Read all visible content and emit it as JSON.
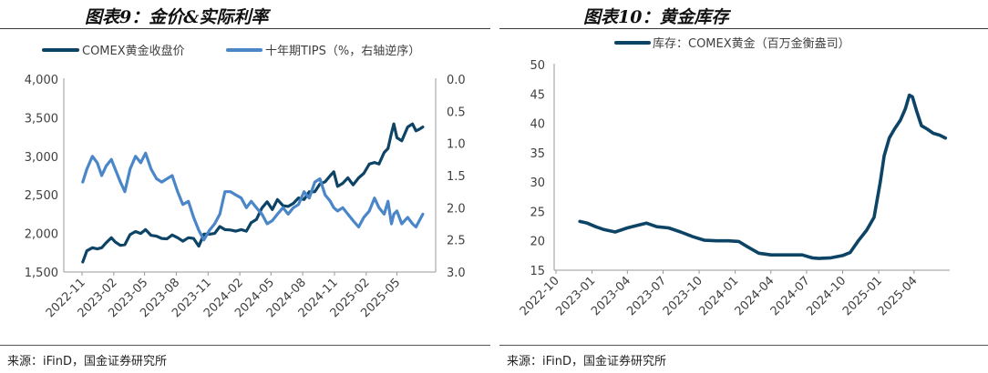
{
  "page": {
    "left_title": "图表9：金价&实际利率",
    "right_title": "图表10：黄金库存",
    "left_source": "来源：iFinD，国金证券研究所",
    "right_source": "来源：iFinD，国金证券研究所"
  },
  "chart_data": [
    {
      "type": "line",
      "x_ticks": [
        "2022-11",
        "2023-02",
        "2023-05",
        "2023-08",
        "2023-11",
        "2024-02",
        "2024-05",
        "2024-08",
        "2024-11",
        "2025-02",
        "2025-05"
      ],
      "y_left": {
        "ticks": [
          "1,500",
          "2,000",
          "2,500",
          "3,000",
          "3,500",
          "4,000"
        ],
        "lim": [
          1500,
          4000
        ]
      },
      "y_right": {
        "ticks": [
          "0.0",
          "0.5",
          "1.0",
          "1.5",
          "2.0",
          "2.5",
          "3.0"
        ],
        "lim": [
          0,
          3
        ],
        "inverted": true
      },
      "legend_position": "top",
      "series": [
        {
          "name": "COMEX黄金收盘价",
          "axis": "left",
          "color": "#0d4466",
          "points": [
            [
              "2022-11-03",
              1630
            ],
            [
              "2022-11-15",
              1775
            ],
            [
              "2022-12-01",
              1815
            ],
            [
              "2022-12-15",
              1800
            ],
            [
              "2022-12-28",
              1815
            ],
            [
              "2023-01-10",
              1880
            ],
            [
              "2023-01-25",
              1945
            ],
            [
              "2023-02-05",
              1890
            ],
            [
              "2023-02-20",
              1845
            ],
            [
              "2023-03-05",
              1855
            ],
            [
              "2023-03-20",
              1985
            ],
            [
              "2023-04-05",
              2025
            ],
            [
              "2023-04-20",
              2000
            ],
            [
              "2023-05-04",
              2050
            ],
            [
              "2023-05-20",
              1975
            ],
            [
              "2023-06-05",
              1965
            ],
            [
              "2023-06-20",
              1935
            ],
            [
              "2023-07-05",
              1930
            ],
            [
              "2023-07-20",
              1980
            ],
            [
              "2023-08-05",
              1945
            ],
            [
              "2023-08-20",
              1900
            ],
            [
              "2023-09-05",
              1945
            ],
            [
              "2023-09-20",
              1935
            ],
            [
              "2023-10-05",
              1835
            ],
            [
              "2023-10-20",
              1990
            ],
            [
              "2023-11-05",
              1990
            ],
            [
              "2023-11-20",
              2000
            ],
            [
              "2023-12-05",
              2090
            ],
            [
              "2023-12-20",
              2050
            ],
            [
              "2024-01-05",
              2045
            ],
            [
              "2024-01-20",
              2030
            ],
            [
              "2024-02-05",
              2050
            ],
            [
              "2024-02-20",
              2030
            ],
            [
              "2024-03-05",
              2140
            ],
            [
              "2024-03-20",
              2180
            ],
            [
              "2024-04-05",
              2330
            ],
            [
              "2024-04-20",
              2410
            ],
            [
              "2024-05-05",
              2310
            ],
            [
              "2024-05-20",
              2440
            ],
            [
              "2024-06-05",
              2360
            ],
            [
              "2024-06-20",
              2350
            ],
            [
              "2024-07-05",
              2390
            ],
            [
              "2024-07-20",
              2460
            ],
            [
              "2024-08-05",
              2440
            ],
            [
              "2024-08-20",
              2540
            ],
            [
              "2024-09-05",
              2540
            ],
            [
              "2024-09-20",
              2640
            ],
            [
              "2024-10-05",
              2670
            ],
            [
              "2024-10-20",
              2750
            ],
            [
              "2024-10-30",
              2800
            ],
            [
              "2024-11-10",
              2610
            ],
            [
              "2024-11-25",
              2650
            ],
            [
              "2024-12-10",
              2720
            ],
            [
              "2024-12-25",
              2630
            ],
            [
              "2025-01-10",
              2720
            ],
            [
              "2025-01-25",
              2780
            ],
            [
              "2025-02-10",
              2900
            ],
            [
              "2025-02-25",
              2920
            ],
            [
              "2025-03-10",
              2900
            ],
            [
              "2025-03-25",
              3050
            ],
            [
              "2025-04-05",
              3100
            ],
            [
              "2025-04-15",
              3300
            ],
            [
              "2025-04-22",
              3420
            ],
            [
              "2025-05-01",
              3240
            ],
            [
              "2025-05-15",
              3200
            ],
            [
              "2025-06-01",
              3380
            ],
            [
              "2025-06-15",
              3420
            ],
            [
              "2025-06-25",
              3330
            ],
            [
              "2025-07-05",
              3350
            ],
            [
              "2025-07-15",
              3380
            ]
          ]
        },
        {
          "name": "十年期TIPS（%，右轴逆序）",
          "axis": "right",
          "color": "#4a86c8",
          "points": [
            [
              "2022-11-03",
              1.6
            ],
            [
              "2022-11-15",
              1.4
            ],
            [
              "2022-12-01",
              1.2
            ],
            [
              "2022-12-15",
              1.3
            ],
            [
              "2022-12-28",
              1.5
            ],
            [
              "2023-01-10",
              1.35
            ],
            [
              "2023-01-25",
              1.25
            ],
            [
              "2023-02-05",
              1.4
            ],
            [
              "2023-02-20",
              1.6
            ],
            [
              "2023-03-05",
              1.75
            ],
            [
              "2023-03-20",
              1.4
            ],
            [
              "2023-04-05",
              1.2
            ],
            [
              "2023-04-20",
              1.3
            ],
            [
              "2023-05-04",
              1.15
            ],
            [
              "2023-05-20",
              1.4
            ],
            [
              "2023-06-05",
              1.55
            ],
            [
              "2023-06-20",
              1.6
            ],
            [
              "2023-07-05",
              1.55
            ],
            [
              "2023-07-20",
              1.5
            ],
            [
              "2023-08-05",
              1.75
            ],
            [
              "2023-08-20",
              1.95
            ],
            [
              "2023-09-05",
              1.9
            ],
            [
              "2023-09-20",
              2.15
            ],
            [
              "2023-10-05",
              2.35
            ],
            [
              "2023-10-20",
              2.5
            ],
            [
              "2023-11-05",
              2.35
            ],
            [
              "2023-11-20",
              2.25
            ],
            [
              "2023-12-05",
              2.1
            ],
            [
              "2023-12-20",
              1.75
            ],
            [
              "2024-01-05",
              1.75
            ],
            [
              "2024-01-20",
              1.8
            ],
            [
              "2024-02-05",
              1.85
            ],
            [
              "2024-02-20",
              2.0
            ],
            [
              "2024-03-05",
              1.9
            ],
            [
              "2024-03-20",
              2.0
            ],
            [
              "2024-04-05",
              2.1
            ],
            [
              "2024-04-20",
              2.25
            ],
            [
              "2024-05-05",
              2.2
            ],
            [
              "2024-05-20",
              2.1
            ],
            [
              "2024-06-05",
              2.0
            ],
            [
              "2024-06-20",
              2.1
            ],
            [
              "2024-07-05",
              2.0
            ],
            [
              "2024-07-20",
              1.95
            ],
            [
              "2024-08-05",
              1.75
            ],
            [
              "2024-08-20",
              1.85
            ],
            [
              "2024-09-05",
              1.6
            ],
            [
              "2024-09-20",
              1.55
            ],
            [
              "2024-10-05",
              1.8
            ],
            [
              "2024-10-20",
              1.9
            ],
            [
              "2024-10-30",
              2.0
            ],
            [
              "2024-11-10",
              2.05
            ],
            [
              "2024-11-25",
              2.0
            ],
            [
              "2024-12-10",
              2.1
            ],
            [
              "2024-12-25",
              2.2
            ],
            [
              "2025-01-10",
              2.3
            ],
            [
              "2025-01-25",
              2.15
            ],
            [
              "2025-02-10",
              2.05
            ],
            [
              "2025-02-25",
              1.85
            ],
            [
              "2025-03-10",
              2.0
            ],
            [
              "2025-03-25",
              2.1
            ],
            [
              "2025-04-05",
              1.9
            ],
            [
              "2025-04-15",
              2.25
            ],
            [
              "2025-04-22",
              2.1
            ],
            [
              "2025-05-01",
              2.05
            ],
            [
              "2025-05-15",
              2.25
            ],
            [
              "2025-06-01",
              2.15
            ],
            [
              "2025-06-15",
              2.25
            ],
            [
              "2025-06-25",
              2.3
            ],
            [
              "2025-07-05",
              2.2
            ],
            [
              "2025-07-15",
              2.1
            ]
          ]
        }
      ]
    },
    {
      "type": "line",
      "x_ticks": [
        "2022-10",
        "2023-01",
        "2023-04",
        "2023-07",
        "2023-10",
        "2024-01",
        "2024-04",
        "2024-07",
        "2024-10",
        "2025-01",
        "2025-04"
      ],
      "y": {
        "ticks": [
          "15",
          "20",
          "25",
          "30",
          "35",
          "40",
          "45",
          "50"
        ],
        "lim": [
          15,
          50
        ]
      },
      "legend_position": "top",
      "series": [
        {
          "name": "库存：COMEX黄金（百万金衡盎司）",
          "color": "#0d4466",
          "points": [
            [
              "2022-12-01",
              23.3
            ],
            [
              "2022-12-20",
              23.0
            ],
            [
              "2023-01-10",
              22.4
            ],
            [
              "2023-02-01",
              21.9
            ],
            [
              "2023-03-01",
              21.5
            ],
            [
              "2023-04-01",
              22.2
            ],
            [
              "2023-05-01",
              22.7
            ],
            [
              "2023-05-20",
              23.0
            ],
            [
              "2023-06-15",
              22.4
            ],
            [
              "2023-07-15",
              22.2
            ],
            [
              "2023-08-15",
              21.5
            ],
            [
              "2023-09-15",
              20.7
            ],
            [
              "2023-10-15",
              20.1
            ],
            [
              "2023-11-15",
              20.0
            ],
            [
              "2023-12-15",
              20.0
            ],
            [
              "2024-01-10",
              19.9
            ],
            [
              "2024-02-01",
              19.0
            ],
            [
              "2024-03-01",
              17.9
            ],
            [
              "2024-04-01",
              17.6
            ],
            [
              "2024-05-01",
              17.6
            ],
            [
              "2024-06-01",
              17.6
            ],
            [
              "2024-06-20",
              17.6
            ],
            [
              "2024-07-15",
              17.1
            ],
            [
              "2024-08-01",
              17.0
            ],
            [
              "2024-09-01",
              17.1
            ],
            [
              "2024-10-01",
              17.5
            ],
            [
              "2024-10-20",
              18.0
            ],
            [
              "2024-11-10",
              20.0
            ],
            [
              "2024-12-01",
              21.8
            ],
            [
              "2024-12-20",
              24.0
            ],
            [
              "2025-01-05",
              30.0
            ],
            [
              "2025-01-15",
              34.5
            ],
            [
              "2025-01-28",
              37.5
            ],
            [
              "2025-02-10",
              39.0
            ],
            [
              "2025-02-25",
              40.5
            ],
            [
              "2025-03-10",
              42.5
            ],
            [
              "2025-03-20",
              44.8
            ],
            [
              "2025-03-28",
              44.5
            ],
            [
              "2025-04-08",
              42.0
            ],
            [
              "2025-04-20",
              39.6
            ],
            [
              "2025-05-05",
              39.0
            ],
            [
              "2025-05-20",
              38.3
            ],
            [
              "2025-06-05",
              38.0
            ],
            [
              "2025-06-20",
              37.5
            ]
          ]
        }
      ]
    }
  ]
}
